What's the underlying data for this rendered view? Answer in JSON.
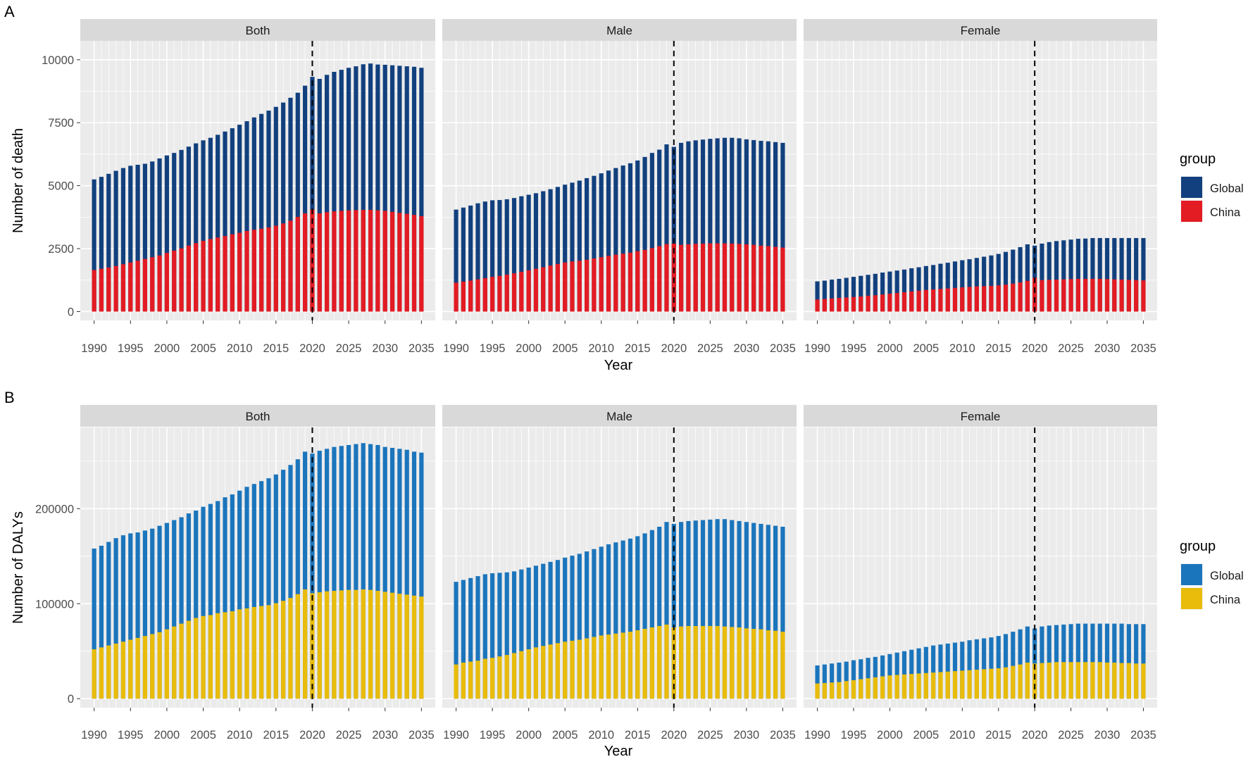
{
  "chart_data": [
    {
      "type": "bar",
      "panel_label": "A",
      "xlabel": "Year",
      "ylabel": "Number of death",
      "facets": [
        "Both",
        "Male",
        "Female"
      ],
      "legend_title": "group",
      "legend_position": "right",
      "grid": true,
      "bar_mode": "overlay",
      "reference_line_x": 2020,
      "x": [
        1990,
        1991,
        1992,
        1993,
        1994,
        1995,
        1996,
        1997,
        1998,
        1999,
        2000,
        2001,
        2002,
        2003,
        2004,
        2005,
        2006,
        2007,
        2008,
        2009,
        2010,
        2011,
        2012,
        2013,
        2014,
        2015,
        2016,
        2017,
        2018,
        2019,
        2020,
        2021,
        2022,
        2023,
        2024,
        2025,
        2026,
        2027,
        2028,
        2029,
        2030,
        2031,
        2032,
        2033,
        2034,
        2035
      ],
      "xticks": [
        1990,
        1995,
        2000,
        2005,
        2010,
        2015,
        2020,
        2025,
        2030,
        2035
      ],
      "yticks": [
        0,
        2500,
        5000,
        7500,
        10000
      ],
      "ylim": [
        -350,
        10750
      ],
      "series_colors": {
        "Global": "#12407e",
        "China": "#e31b23"
      },
      "series": [
        {
          "name": "Global",
          "facet": "Both",
          "values": [
            5250,
            5350,
            5470,
            5590,
            5700,
            5790,
            5830,
            5870,
            5960,
            6080,
            6200,
            6300,
            6420,
            6550,
            6680,
            6800,
            6900,
            7020,
            7150,
            7280,
            7420,
            7560,
            7710,
            7850,
            7980,
            8130,
            8300,
            8490,
            8690,
            8970,
            9320,
            9240,
            9400,
            9520,
            9600,
            9680,
            9740,
            9820,
            9850,
            9810,
            9800,
            9780,
            9760,
            9740,
            9720,
            9680
          ]
        },
        {
          "name": "Global",
          "facet": "Male",
          "values": [
            4050,
            4130,
            4210,
            4300,
            4370,
            4420,
            4430,
            4460,
            4510,
            4580,
            4640,
            4700,
            4780,
            4860,
            4950,
            5040,
            5120,
            5200,
            5300,
            5390,
            5490,
            5600,
            5700,
            5800,
            5890,
            6000,
            6140,
            6300,
            6430,
            6640,
            6540,
            6700,
            6760,
            6800,
            6830,
            6860,
            6880,
            6900,
            6900,
            6880,
            6840,
            6810,
            6780,
            6760,
            6730,
            6700
          ]
        },
        {
          "name": "Global",
          "facet": "Female",
          "values": [
            1200,
            1230,
            1270,
            1300,
            1340,
            1380,
            1420,
            1460,
            1500,
            1550,
            1590,
            1630,
            1670,
            1720,
            1760,
            1810,
            1850,
            1900,
            1940,
            1990,
            2040,
            2080,
            2130,
            2180,
            2230,
            2290,
            2370,
            2460,
            2560,
            2670,
            2620,
            2700,
            2760,
            2800,
            2830,
            2860,
            2890,
            2900,
            2920,
            2920,
            2920,
            2920,
            2920,
            2920,
            2920,
            2920
          ]
        },
        {
          "name": "China",
          "facet": "Both",
          "values": [
            1650,
            1700,
            1750,
            1810,
            1880,
            1950,
            2020,
            2090,
            2160,
            2230,
            2330,
            2420,
            2510,
            2620,
            2720,
            2810,
            2880,
            2940,
            3000,
            3070,
            3130,
            3200,
            3250,
            3290,
            3340,
            3410,
            3500,
            3610,
            3760,
            3900,
            4050,
            3900,
            3950,
            3980,
            4000,
            4020,
            4030,
            4040,
            4040,
            4020,
            4000,
            3960,
            3920,
            3880,
            3840,
            3790
          ]
        },
        {
          "name": "China",
          "facet": "Male",
          "values": [
            1150,
            1190,
            1230,
            1280,
            1330,
            1380,
            1420,
            1470,
            1520,
            1580,
            1640,
            1700,
            1760,
            1830,
            1890,
            1950,
            1990,
            2020,
            2060,
            2110,
            2160,
            2210,
            2260,
            2300,
            2340,
            2400,
            2450,
            2520,
            2600,
            2680,
            2700,
            2650,
            2670,
            2690,
            2700,
            2710,
            2710,
            2710,
            2700,
            2690,
            2670,
            2650,
            2620,
            2600,
            2570,
            2540
          ]
        },
        {
          "name": "China",
          "facet": "Female",
          "values": [
            480,
            500,
            520,
            540,
            560,
            580,
            600,
            630,
            650,
            680,
            710,
            740,
            770,
            800,
            830,
            860,
            880,
            900,
            920,
            940,
            960,
            980,
            1000,
            1010,
            1020,
            1040,
            1070,
            1110,
            1160,
            1220,
            1350,
            1250,
            1260,
            1270,
            1280,
            1290,
            1300,
            1300,
            1300,
            1300,
            1290,
            1280,
            1270,
            1260,
            1250,
            1240
          ]
        }
      ]
    },
    {
      "type": "bar",
      "panel_label": "B",
      "xlabel": "Year",
      "ylabel": "Number of DALYs",
      "facets": [
        "Both",
        "Male",
        "Female"
      ],
      "legend_title": "group",
      "legend_position": "right",
      "grid": true,
      "bar_mode": "overlay",
      "reference_line_x": 2020,
      "x": [
        1990,
        1991,
        1992,
        1993,
        1994,
        1995,
        1996,
        1997,
        1998,
        1999,
        2000,
        2001,
        2002,
        2003,
        2004,
        2005,
        2006,
        2007,
        2008,
        2009,
        2010,
        2011,
        2012,
        2013,
        2014,
        2015,
        2016,
        2017,
        2018,
        2019,
        2020,
        2021,
        2022,
        2023,
        2024,
        2025,
        2026,
        2027,
        2028,
        2029,
        2030,
        2031,
        2032,
        2033,
        2034,
        2035
      ],
      "xticks": [
        1990,
        1995,
        2000,
        2005,
        2010,
        2015,
        2020,
        2025,
        2030,
        2035
      ],
      "yticks": [
        0,
        100000,
        200000
      ],
      "ylim": [
        -9500,
        285500
      ],
      "series_colors": {
        "Global": "#1b75bc",
        "China": "#e9bc0b"
      },
      "series": [
        {
          "name": "Global",
          "facet": "Both",
          "values": [
            158000,
            161000,
            165000,
            169000,
            172000,
            174000,
            175000,
            177000,
            179000,
            182000,
            185000,
            188000,
            191000,
            195000,
            198000,
            202000,
            205000,
            208000,
            212000,
            215000,
            219000,
            223000,
            226000,
            229000,
            232000,
            236000,
            241000,
            246000,
            252000,
            260000,
            258000,
            261000,
            263000,
            265000,
            266000,
            267000,
            268000,
            269000,
            268000,
            267000,
            265000,
            264000,
            263000,
            262000,
            260000,
            259000
          ]
        },
        {
          "name": "Global",
          "facet": "Male",
          "values": [
            123000,
            125000,
            127000,
            129000,
            131000,
            132000,
            132500,
            133000,
            134000,
            136000,
            138000,
            140000,
            142000,
            144000,
            146000,
            148500,
            150500,
            152500,
            155000,
            157500,
            160000,
            162500,
            164500,
            166500,
            168500,
            171000,
            174000,
            177500,
            181000,
            186000,
            184000,
            186000,
            187000,
            187500,
            188000,
            188500,
            189000,
            189000,
            188000,
            187000,
            186000,
            185000,
            184000,
            183000,
            182000,
            181000
          ]
        },
        {
          "name": "Global",
          "facet": "Female",
          "values": [
            35000,
            36000,
            37000,
            38000,
            39000,
            40500,
            41500,
            43000,
            44000,
            45500,
            47000,
            48500,
            50000,
            51500,
            53000,
            54500,
            56000,
            57000,
            58000,
            59000,
            60000,
            61500,
            62500,
            63500,
            64500,
            66000,
            68000,
            70500,
            73000,
            76000,
            74000,
            76000,
            77000,
            77500,
            78000,
            78500,
            79000,
            79000,
            79000,
            79000,
            79000,
            79000,
            79000,
            78500,
            78500,
            78500
          ]
        },
        {
          "name": "China",
          "facet": "Both",
          "values": [
            52000,
            54000,
            56000,
            58000,
            60000,
            62000,
            64000,
            66000,
            68000,
            70000,
            73000,
            76000,
            79000,
            82000,
            85000,
            87000,
            88000,
            90000,
            91000,
            92000,
            94000,
            95000,
            96500,
            97500,
            98500,
            100500,
            103000,
            106000,
            110000,
            115000,
            111000,
            112000,
            113000,
            113500,
            114000,
            114500,
            114500,
            115000,
            114500,
            113500,
            112500,
            111500,
            110500,
            109500,
            108500,
            107500
          ]
        },
        {
          "name": "China",
          "facet": "Male",
          "values": [
            36000,
            38000,
            39000,
            40000,
            42000,
            43000,
            44500,
            46000,
            48000,
            50000,
            52000,
            54000,
            55500,
            57000,
            58500,
            60000,
            61000,
            62000,
            63500,
            65000,
            66500,
            67500,
            68500,
            69500,
            70500,
            72000,
            73500,
            75000,
            76500,
            78000,
            75000,
            76000,
            76500,
            76500,
            76500,
            76500,
            76500,
            76000,
            75500,
            75000,
            74000,
            73500,
            73000,
            72000,
            71500,
            70500
          ]
        },
        {
          "name": "China",
          "facet": "Female",
          "values": [
            16000,
            16500,
            17000,
            17500,
            18500,
            19500,
            20500,
            21500,
            22500,
            23500,
            24500,
            25000,
            25500,
            26000,
            26500,
            27000,
            27500,
            28000,
            28500,
            29000,
            29500,
            30000,
            30500,
            31000,
            31500,
            32000,
            33000,
            34500,
            36000,
            38000,
            37000,
            37500,
            38000,
            38500,
            38500,
            38500,
            38500,
            38500,
            38500,
            38500,
            38000,
            38000,
            37500,
            37500,
            37000,
            37000
          ]
        }
      ]
    }
  ]
}
